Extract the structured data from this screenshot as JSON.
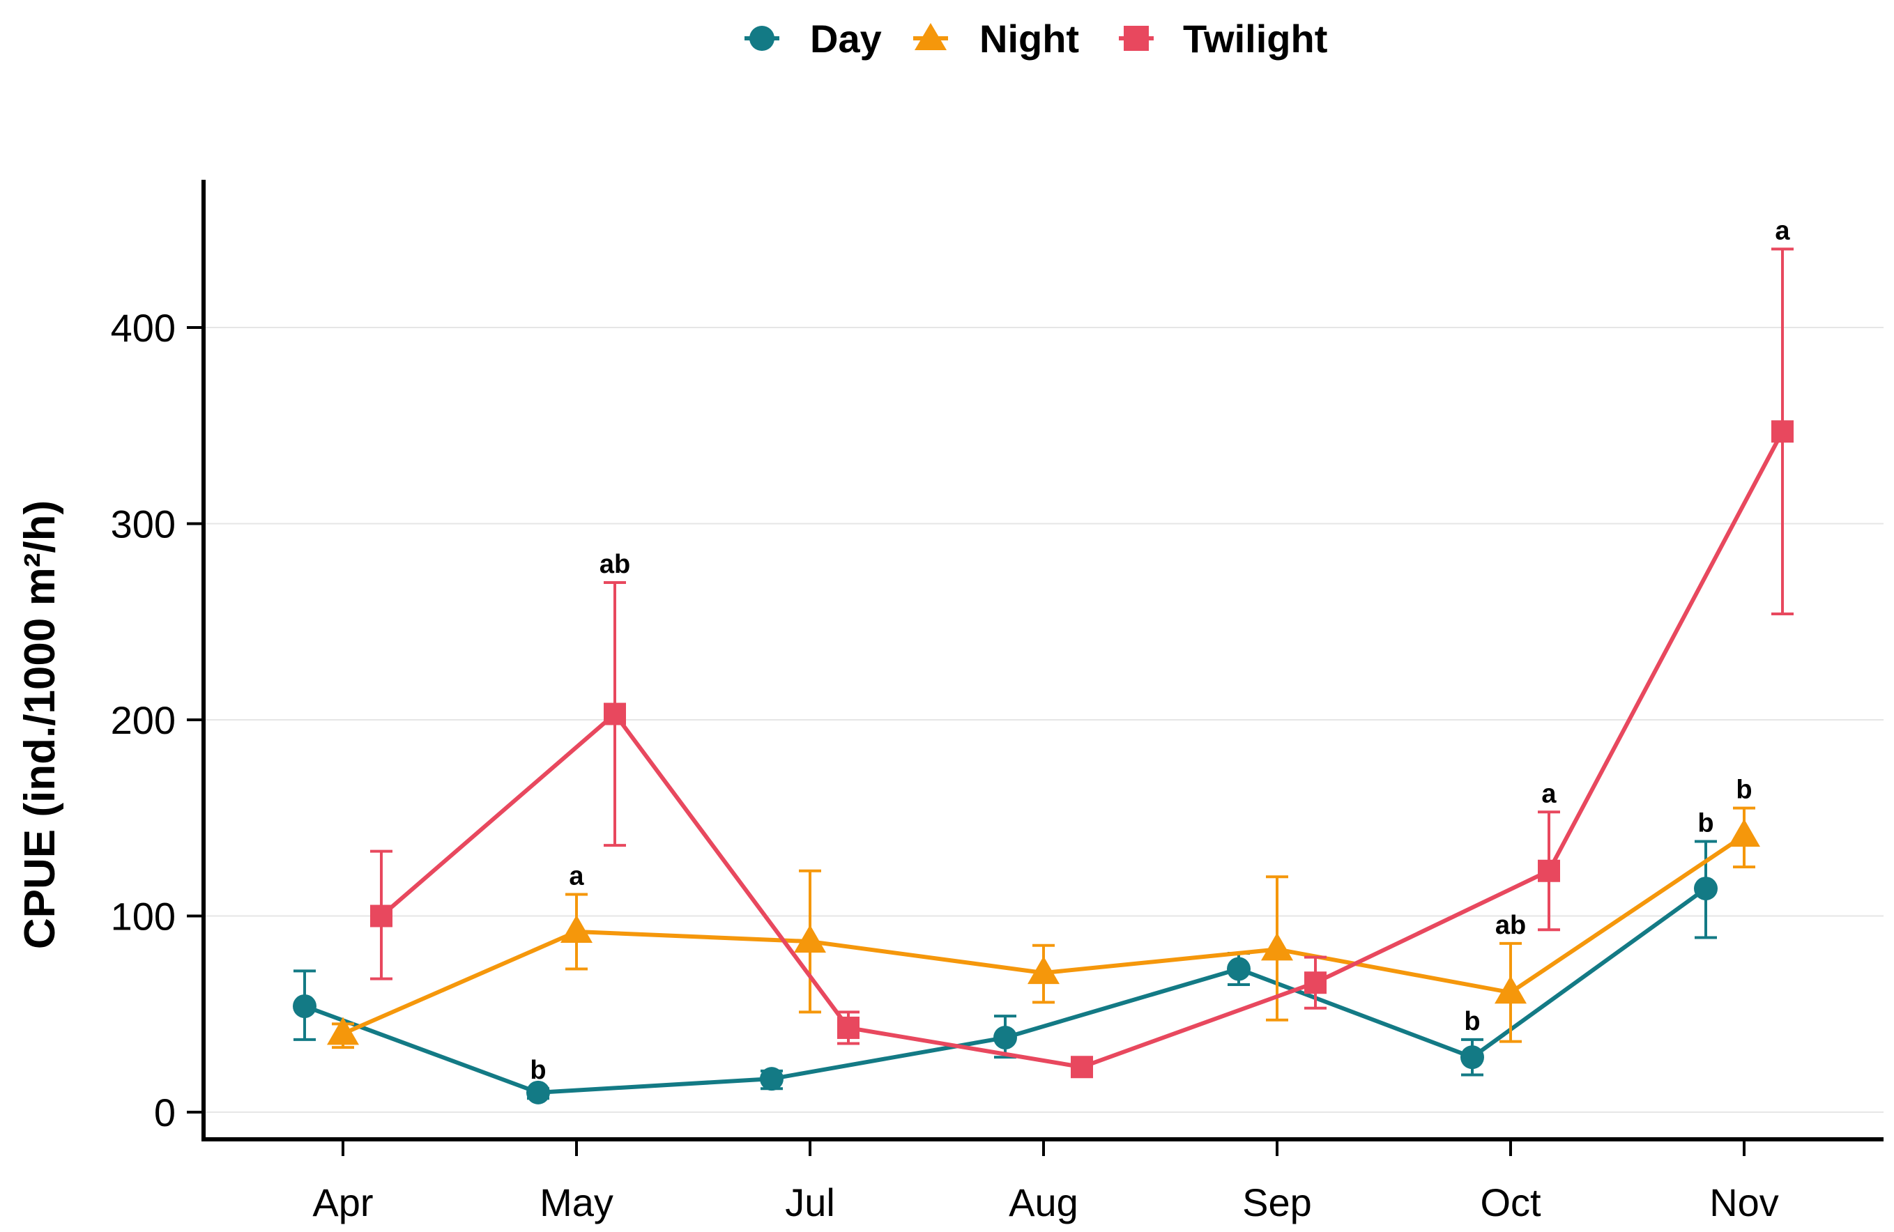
{
  "chart_data": {
    "type": "line",
    "title": "",
    "xlabel": "",
    "ylabel": "CPUE (ind./1000 m²/h)",
    "categories": [
      "Apr",
      "May",
      "Jul",
      "Aug",
      "Sep",
      "Oct",
      "Nov"
    ],
    "ylim": [
      0,
      460
    ],
    "yticks": [
      0,
      100,
      200,
      300,
      400
    ],
    "grid": "horizontal",
    "legend_position": "top",
    "series": [
      {
        "name": "Day",
        "marker": "circle",
        "color": "#137a85",
        "values": [
          54,
          10,
          17,
          38,
          73,
          28,
          114
        ],
        "err_low": [
          37,
          7,
          12,
          28,
          65,
          19,
          89
        ],
        "err_high": [
          72,
          12,
          21,
          49,
          81,
          37,
          138
        ],
        "labels": [
          "",
          "b",
          "",
          "",
          "",
          "b",
          "b"
        ]
      },
      {
        "name": "Night",
        "marker": "triangle",
        "color": "#f5970b",
        "values": [
          40,
          92,
          87,
          71,
          83,
          61,
          141
        ],
        "err_low": [
          33,
          73,
          51,
          56,
          47,
          36,
          125
        ],
        "err_high": [
          45,
          111,
          123,
          85,
          120,
          86,
          155
        ],
        "labels": [
          "",
          "a",
          "",
          "",
          "",
          "ab",
          "b"
        ]
      },
      {
        "name": "Twilight",
        "marker": "square",
        "color": "#e8485e",
        "values": [
          100,
          203,
          43,
          23,
          66,
          123,
          347
        ],
        "err_low": [
          68,
          136,
          35,
          21,
          53,
          93,
          254
        ],
        "err_high": [
          133,
          270,
          51,
          25,
          79,
          153,
          440
        ],
        "labels": [
          "",
          "ab",
          "",
          "",
          "",
          "a",
          "a"
        ]
      }
    ]
  }
}
